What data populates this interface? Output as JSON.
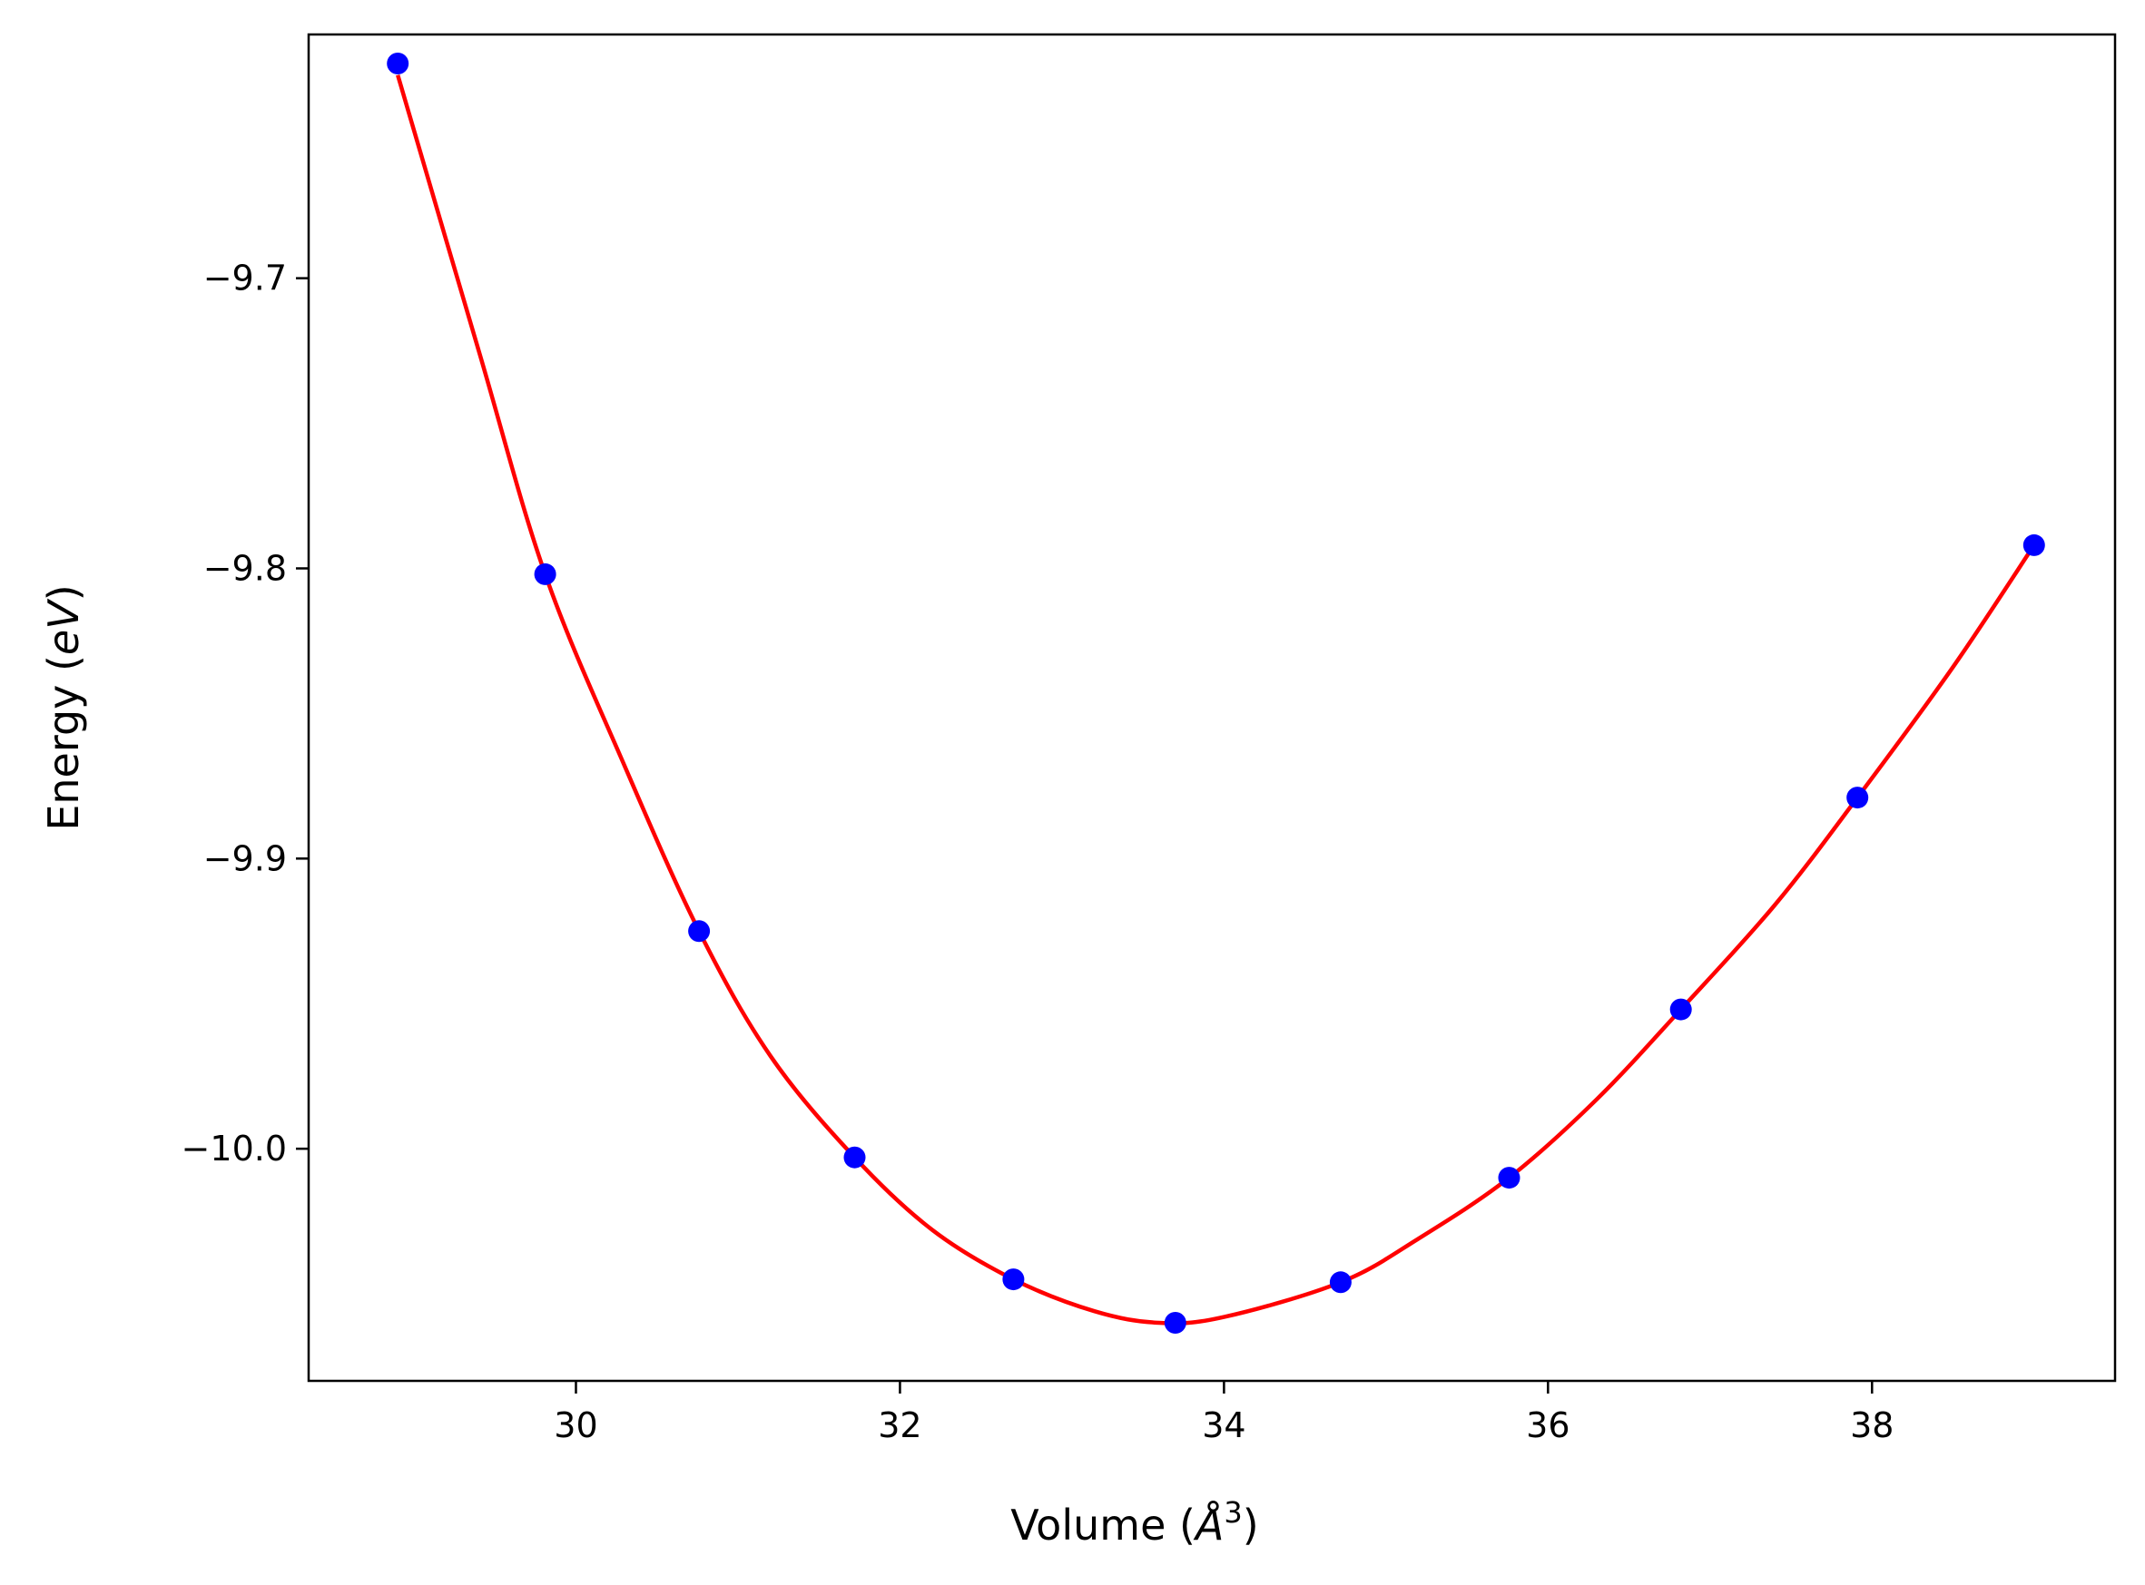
{
  "chart_data": {
    "type": "scatter",
    "title": "",
    "xlabel": {
      "main": "Volume (",
      "italic": "Å",
      "sup": "3",
      "tail": ")"
    },
    "ylabel": {
      "main": "Energy (",
      "italic": "eV",
      "tail": ")"
    },
    "xlim": [
      28.35,
      39.5
    ],
    "ylim": [
      -10.08,
      -9.616
    ],
    "xticks": [
      30,
      32,
      34,
      36,
      38
    ],
    "yticks": [
      -9.7,
      -9.8,
      -9.9,
      -10.0
    ],
    "xtick_labels": [
      "30",
      "32",
      "34",
      "36",
      "38"
    ],
    "ytick_labels": [
      "−9.7",
      "−9.8",
      "−9.9",
      "−10.0"
    ],
    "grid": false,
    "series": [
      {
        "kind": "points",
        "color": "#0000ff",
        "x": [
          28.9,
          29.81,
          30.76,
          31.72,
          32.7,
          33.7,
          34.72,
          35.76,
          36.82,
          37.91,
          39.0
        ],
        "y": [
          -9.626,
          -9.802,
          -9.925,
          -10.003,
          -10.045,
          -10.06,
          -10.046,
          -10.01,
          -9.952,
          -9.879,
          -9.792
        ]
      },
      {
        "kind": "fit-curve",
        "color": "#ff0000",
        "x": [
          28.9,
          29.4,
          29.81,
          30.3,
          30.76,
          31.2,
          31.72,
          32.2,
          32.7,
          33.2,
          33.6,
          34.0,
          34.72,
          35.2,
          35.76,
          36.3,
          36.82,
          37.4,
          37.91,
          38.5,
          39.0
        ],
        "y": [
          -9.63,
          -9.725,
          -9.802,
          -9.868,
          -9.925,
          -9.968,
          -10.003,
          -10.028,
          -10.045,
          -10.056,
          -10.06,
          -10.058,
          -10.046,
          -10.031,
          -10.01,
          -9.983,
          -9.952,
          -9.916,
          -9.879,
          -9.834,
          -9.792
        ]
      }
    ]
  }
}
